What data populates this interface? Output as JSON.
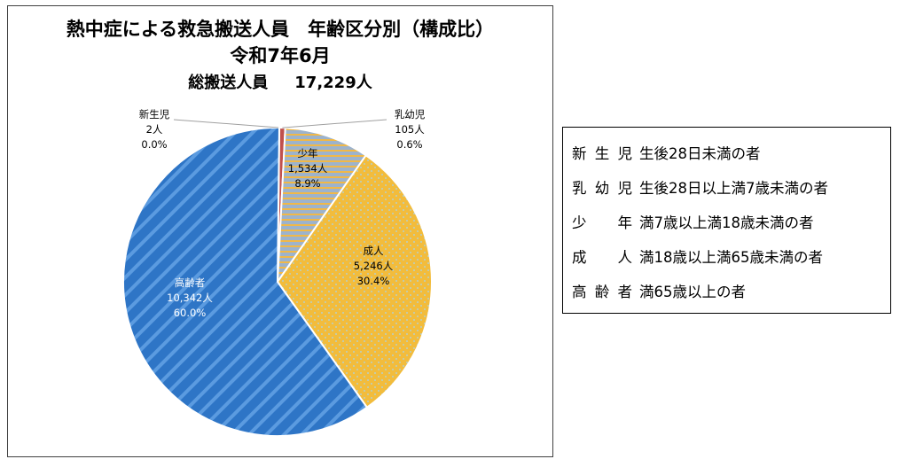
{
  "chart_data": {
    "type": "pie",
    "title": "熱中症による救急搬送人員　年齢区分別（構成比）",
    "subtitle": "令和7年6月",
    "total_label": "総搬送人員",
    "total_value": "17,229人",
    "slices": [
      {
        "name": "新生児",
        "count_label": "2人",
        "percent_label": "0.0%",
        "value": 2,
        "color": "#e0703a",
        "pattern": "solid"
      },
      {
        "name": "乳幼児",
        "count_label": "105人",
        "percent_label": "0.6%",
        "value": 105,
        "color": "#c0504d",
        "pattern": "solid"
      },
      {
        "name": "少年",
        "count_label": "1,534人",
        "percent_label": "8.9%",
        "value": 1534,
        "color": "#9bb0c8",
        "pattern": "hstripe"
      },
      {
        "name": "成人",
        "count_label": "5,246人",
        "percent_label": "30.4%",
        "value": 5246,
        "color": "#f2bc3c",
        "pattern": "dots"
      },
      {
        "name": "高齢者",
        "count_label": "10,342人",
        "percent_label": "60.0%",
        "value": 10342,
        "color": "#2e75c6",
        "pattern": "diag"
      }
    ]
  },
  "definitions": [
    {
      "term": "新生児",
      "desc": "生後28日未満の者"
    },
    {
      "term": "乳幼児",
      "desc": "生後28日以上満7歳未満の者"
    },
    {
      "term": "少年",
      "desc": "満7歳以上満18歳未満の者"
    },
    {
      "term": "成人",
      "desc": "満18歳以上満65歳未満の者"
    },
    {
      "term": "高齢者",
      "desc": "満65歳以上の者"
    }
  ]
}
